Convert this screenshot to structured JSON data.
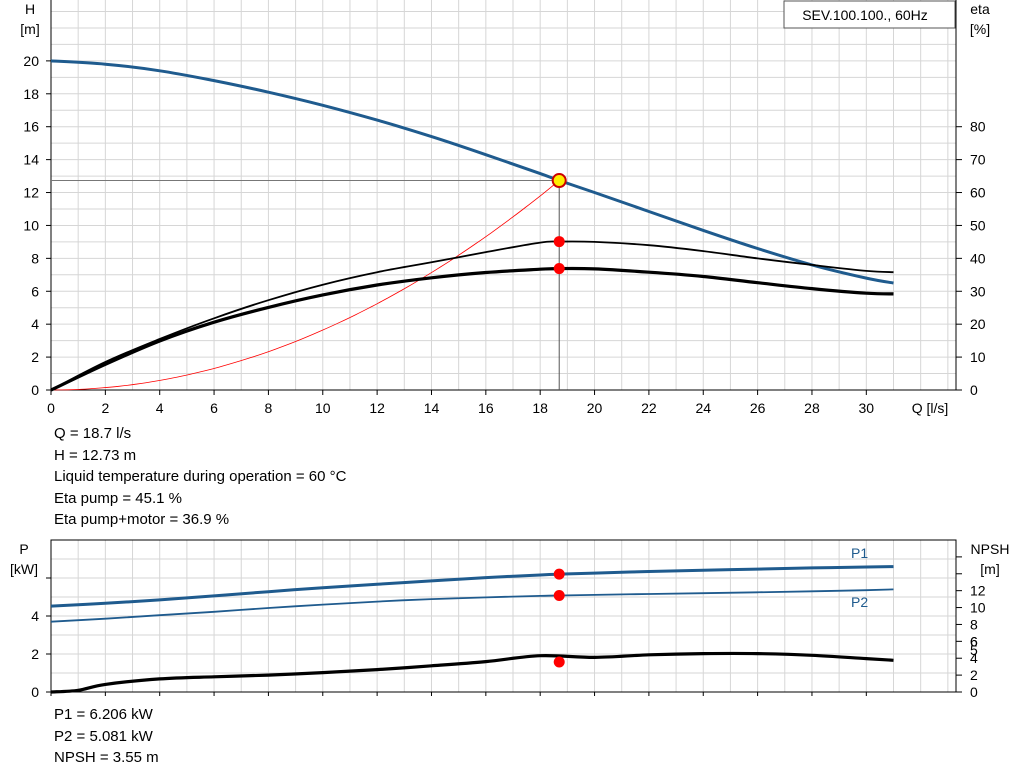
{
  "chart_data": [
    {
      "type": "line",
      "title": "SEV.100.100., 60Hz",
      "xlabel": "Q [l/s]",
      "ylabel_left": [
        "H",
        "[m]"
      ],
      "ylabel_right": [
        "eta",
        "[%]"
      ],
      "xlim": [
        0,
        33.3
      ],
      "xticks": [
        0,
        2,
        4,
        6,
        8,
        10,
        12,
        14,
        16,
        18,
        20,
        22,
        24,
        26,
        28,
        30
      ],
      "ylim": [
        0,
        23.7
      ],
      "yticks": [
        0,
        2,
        4,
        6,
        8,
        10,
        12,
        14,
        16,
        18,
        20
      ],
      "y2lim": [
        0,
        118.5
      ],
      "y2ticks": [
        0,
        10,
        20,
        30,
        40,
        50,
        60,
        70,
        80
      ],
      "grid": true,
      "series": [
        {
          "axis": "left",
          "color": "#1f5b8e",
          "x": [
            0,
            2,
            4,
            6,
            8,
            10,
            12,
            14,
            16,
            18,
            18.7,
            20,
            22,
            24,
            26,
            28,
            30,
            31
          ],
          "y": [
            20,
            19.8,
            19.4,
            18.8,
            18.1,
            17.3,
            16.4,
            15.4,
            14.3,
            13.15,
            12.73,
            12.0,
            10.85,
            9.7,
            8.6,
            7.6,
            6.8,
            6.5
          ]
        },
        {
          "axis": "right",
          "color": "#000000",
          "x": [
            0,
            2,
            4,
            6,
            8,
            10,
            12,
            14,
            16,
            18,
            18.7,
            20,
            22,
            24,
            26,
            28,
            30,
            31
          ],
          "y": [
            0,
            8.5,
            15.5,
            21.8,
            27.3,
            32.0,
            35.8,
            38.8,
            41.9,
            44.8,
            45.1,
            45.0,
            44.0,
            42.2,
            40.0,
            38.0,
            36.2,
            35.8
          ]
        },
        {
          "axis": "right",
          "color": "#000000",
          "x": [
            0,
            2,
            4,
            6,
            8,
            10,
            12,
            14,
            16,
            18,
            18.7,
            20,
            22,
            24,
            26,
            28,
            30,
            31
          ],
          "y": [
            0,
            7.8,
            14.9,
            20.6,
            25.1,
            28.9,
            31.9,
            34.1,
            35.7,
            36.7,
            36.9,
            36.8,
            35.8,
            34.5,
            32.6,
            30.8,
            29.4,
            29.2
          ]
        }
      ],
      "system_curve": {
        "color": "#ff0000",
        "H_at_Q": 12.73,
        "Q": 18.7
      },
      "operating_point": {
        "Q": 18.7,
        "H": 12.73,
        "eta_pump": 45.1,
        "eta_total": 36.9
      }
    },
    {
      "type": "line",
      "title": "",
      "ylabel_left": [
        "P",
        "[kW]"
      ],
      "ylabel_right": [
        "NPSH",
        "[m]"
      ],
      "xlim": [
        0,
        33.3
      ],
      "ylim": [
        0,
        8
      ],
      "yticks": [
        0,
        2,
        4
      ],
      "y2lim": [
        0,
        18
      ],
      "y2ticks": [
        0,
        2,
        4,
        6,
        8,
        10,
        12
      ],
      "y2_extra_tick_labels": [
        "5",
        "6"
      ],
      "grid": true,
      "series": [
        {
          "name": "P1",
          "axis": "left",
          "color": "#1f5b8e",
          "x": [
            0,
            2,
            4,
            6,
            8,
            10,
            12,
            14,
            16,
            18,
            18.7,
            20,
            22,
            24,
            26,
            28,
            30,
            31
          ],
          "y": [
            4.52,
            4.67,
            4.85,
            5.06,
            5.28,
            5.49,
            5.67,
            5.85,
            6.02,
            6.16,
            6.206,
            6.26,
            6.34,
            6.41,
            6.47,
            6.53,
            6.58,
            6.6
          ]
        },
        {
          "name": "P2",
          "axis": "left",
          "color": "#1f5b8e",
          "x": [
            0,
            2,
            4,
            6,
            8,
            10,
            12,
            14,
            16,
            18,
            18.7,
            20,
            22,
            24,
            26,
            28,
            30,
            31
          ],
          "y": [
            3.7,
            3.86,
            4.04,
            4.22,
            4.42,
            4.6,
            4.76,
            4.89,
            4.98,
            5.06,
            5.081,
            5.11,
            5.16,
            5.2,
            5.25,
            5.3,
            5.36,
            5.4
          ]
        },
        {
          "axis": "right",
          "color": "#000000",
          "x": [
            0,
            1,
            2,
            4,
            6,
            8,
            10,
            12,
            14,
            16,
            18,
            18.7,
            20,
            22,
            24,
            26,
            28,
            30,
            31
          ],
          "y": [
            0,
            0.2,
            0.9,
            1.55,
            1.8,
            2.0,
            2.3,
            2.65,
            3.1,
            3.6,
            4.3,
            3.55,
            4.1,
            4.4,
            4.55,
            4.55,
            4.35,
            3.95,
            3.75
          ]
        }
      ],
      "operating_point": {
        "Q": 18.7,
        "P1": 6.206,
        "P2": 5.081,
        "NPSH": 3.55
      }
    }
  ],
  "info_top": [
    "Q = 18.7 l/s",
    "H = 12.73 m",
    "Liquid temperature during operation = 60 °C",
    "Eta pump = 45.1 %",
    "Eta pump+motor = 36.9 %"
  ],
  "info_bottom": [
    "P1 = 6.206 kW",
    "P2 = 5.081 kW",
    "NPSH = 3.55 m"
  ]
}
